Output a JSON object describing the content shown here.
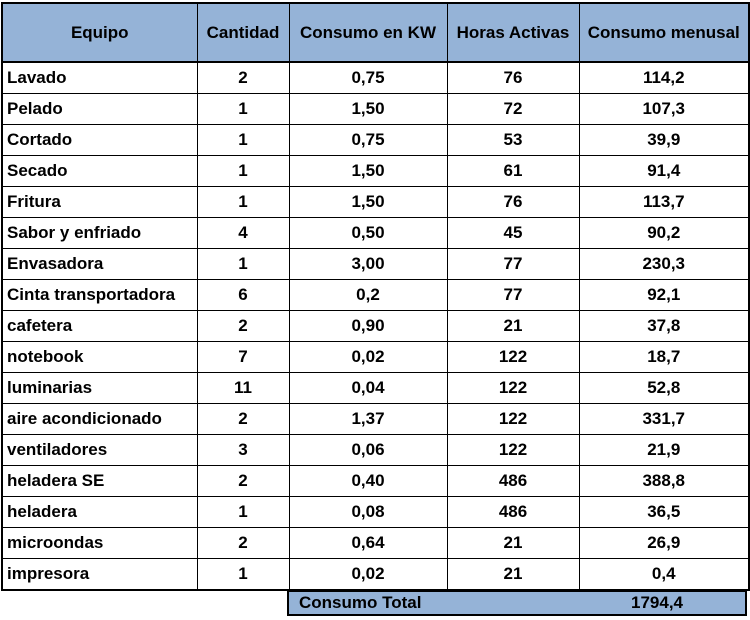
{
  "table": {
    "headers": [
      "Equipo",
      "Cantidad",
      "Consumo en KW",
      "Horas Activas",
      "Consumo menusal"
    ],
    "rows": [
      {
        "equipo": "Lavado",
        "cantidad": "2",
        "kw": "0,75",
        "horas": "76",
        "consumo": "114,2"
      },
      {
        "equipo": "Pelado",
        "cantidad": "1",
        "kw": "1,50",
        "horas": "72",
        "consumo": "107,3"
      },
      {
        "equipo": "Cortado",
        "cantidad": "1",
        "kw": "0,75",
        "horas": "53",
        "consumo": "39,9"
      },
      {
        "equipo": "Secado",
        "cantidad": "1",
        "kw": "1,50",
        "horas": "61",
        "consumo": "91,4"
      },
      {
        "equipo": "Fritura",
        "cantidad": "1",
        "kw": "1,50",
        "horas": "76",
        "consumo": "113,7"
      },
      {
        "equipo": "Sabor y enfriado",
        "cantidad": "4",
        "kw": "0,50",
        "horas": "45",
        "consumo": "90,2"
      },
      {
        "equipo": "Envasadora",
        "cantidad": "1",
        "kw": "3,00",
        "horas": "77",
        "consumo": "230,3"
      },
      {
        "equipo": "Cinta transportadora",
        "cantidad": "6",
        "kw": "0,2",
        "horas": "77",
        "consumo": "92,1"
      },
      {
        "equipo": "cafetera",
        "cantidad": "2",
        "kw": "0,90",
        "horas": "21",
        "consumo": "37,8"
      },
      {
        "equipo": "notebook",
        "cantidad": "7",
        "kw": "0,02",
        "horas": "122",
        "consumo": "18,7"
      },
      {
        "equipo": "luminarias",
        "cantidad": "11",
        "kw": "0,04",
        "horas": "122",
        "consumo": "52,8"
      },
      {
        "equipo": "aire acondicionado",
        "cantidad": "2",
        "kw": "1,37",
        "horas": "122",
        "consumo": "331,7"
      },
      {
        "equipo": "ventiladores",
        "cantidad": "3",
        "kw": "0,06",
        "horas": "122",
        "consumo": "21,9"
      },
      {
        "equipo": "heladera SE",
        "cantidad": "2",
        "kw": "0,40",
        "horas": "486",
        "consumo": "388,8"
      },
      {
        "equipo": "heladera",
        "cantidad": "1",
        "kw": "0,08",
        "horas": "486",
        "consumo": "36,5"
      },
      {
        "equipo": "microondas",
        "cantidad": "2",
        "kw": "0,64",
        "horas": "21",
        "consumo": "26,9"
      },
      {
        "equipo": "impresora",
        "cantidad": "1",
        "kw": "0,02",
        "horas": "21",
        "consumo": "0,4"
      }
    ]
  },
  "total": {
    "label": "Consumo Total",
    "value": "1794,4"
  },
  "colors": {
    "header_fill": "#95b3d7"
  }
}
